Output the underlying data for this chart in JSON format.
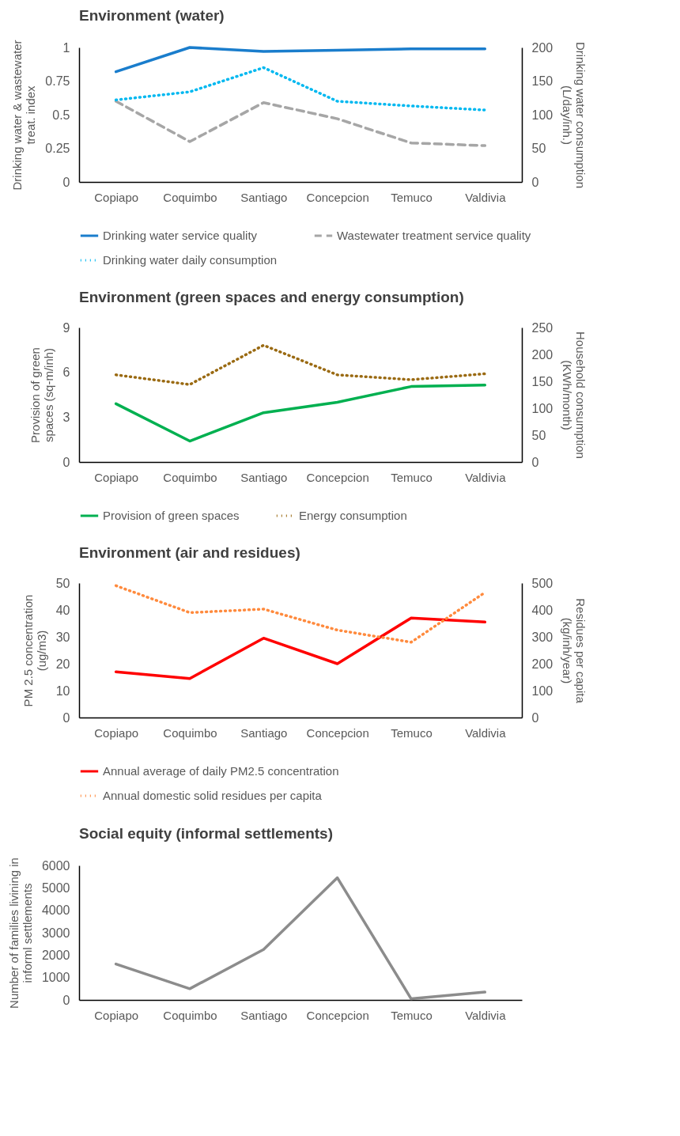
{
  "chart_data": [
    {
      "type": "line",
      "title": "Environment (water)",
      "categories": [
        "Copiapo",
        "Coquimbo",
        "Santiago",
        "Concepcion",
        "Temuco",
        "Valdivia"
      ],
      "ylabel": "Drinking water & wastewater  treat. index",
      "y2label": "Drinking water consumption (L/day/inh.)",
      "ylim": [
        0,
        1
      ],
      "yticks": [
        0,
        0.25,
        0.5,
        0.75,
        1
      ],
      "y2lim": [
        0,
        200
      ],
      "y2ticks": [
        0,
        50,
        100,
        150,
        200
      ],
      "legend": "bottom",
      "series": [
        {
          "name": "Drinking water service quality",
          "color": "#1a7dcc",
          "line_style": "solid",
          "values": [
            0.82,
            1.0,
            0.97,
            0.98,
            0.99,
            0.99
          ]
        },
        {
          "name": "Wastewater treatment service quality",
          "color": "#a6a6a6",
          "line_style": "dashed",
          "values": [
            0.6,
            0.3,
            0.59,
            0.47,
            0.29,
            0.27
          ]
        },
        {
          "name": "Drinking water daily consumption",
          "color": "#00b8f0",
          "line_style": "dotted",
          "axis": "y2",
          "values": [
            122,
            134,
            170,
            120,
            113,
            107
          ]
        }
      ]
    },
    {
      "type": "line",
      "title": "Environment (green spaces and energy consumption)",
      "categories": [
        "Copiapo",
        "Coquimbo",
        "Santiago",
        "Concepcion",
        "Temuco",
        "Valdivia"
      ],
      "ylabel": "Provision of green spaces (sq-m/inh)",
      "y2label": "Household consumption (KWh/month)",
      "ylim": [
        0,
        9
      ],
      "yticks": [
        0,
        3,
        6,
        9
      ],
      "y2lim": [
        0,
        250
      ],
      "y2ticks": [
        0,
        50,
        100,
        150,
        200,
        250
      ],
      "legend": "bottom",
      "series": [
        {
          "name": "Provision of green spaces",
          "color": "#00b050",
          "line_style": "solid",
          "values": [
            3.9,
            1.4,
            3.3,
            4.0,
            5.05,
            5.15
          ]
        },
        {
          "name": "Energy consumption",
          "color": "#9a6a12",
          "line_style": "dotted",
          "axis": "y2",
          "values": [
            162,
            144,
            217,
            162,
            153,
            164
          ]
        }
      ]
    },
    {
      "type": "line",
      "title": "Environment (air and residues)",
      "categories": [
        "Copiapo",
        "Coquimbo",
        "Santiago",
        "Concepcion",
        "Temuco",
        "Valdivia"
      ],
      "ylabel": "PM 2.5 concentration (ug/m3)",
      "y2label": "Residues per capita (kg/inh/year)",
      "ylim": [
        0,
        50
      ],
      "yticks": [
        0,
        10,
        20,
        30,
        40,
        50
      ],
      "y2lim": [
        0,
        500
      ],
      "y2ticks": [
        0,
        100,
        200,
        300,
        400,
        500
      ],
      "legend": "bottom",
      "series": [
        {
          "name": "Annual average of daily PM2.5 concentration",
          "color": "#ff0000",
          "line_style": "solid",
          "values": [
            17,
            14.5,
            29.5,
            20,
            37,
            35.5
          ]
        },
        {
          "name": "Annual domestic solid residues per capita",
          "color": "#ff8a3d",
          "line_style": "dotted",
          "axis": "y2",
          "values": [
            490,
            390,
            403,
            325,
            280,
            465
          ]
        }
      ]
    },
    {
      "type": "line",
      "title": "Social equity (informal settlements)",
      "categories": [
        "Copiapo",
        "Coquimbo",
        "Santiago",
        "Concepcion",
        "Temuco",
        "Valdivia"
      ],
      "ylabel": "Number of families livining in informl settlements",
      "ylim": [
        0,
        6000
      ],
      "yticks": [
        0,
        1000,
        2000,
        3000,
        4000,
        5000,
        6000
      ],
      "series": [
        {
          "color": "#8c8c8c",
          "line_style": "solid",
          "values": [
            1600,
            500,
            2250,
            5450,
            50,
            350
          ]
        }
      ]
    }
  ]
}
